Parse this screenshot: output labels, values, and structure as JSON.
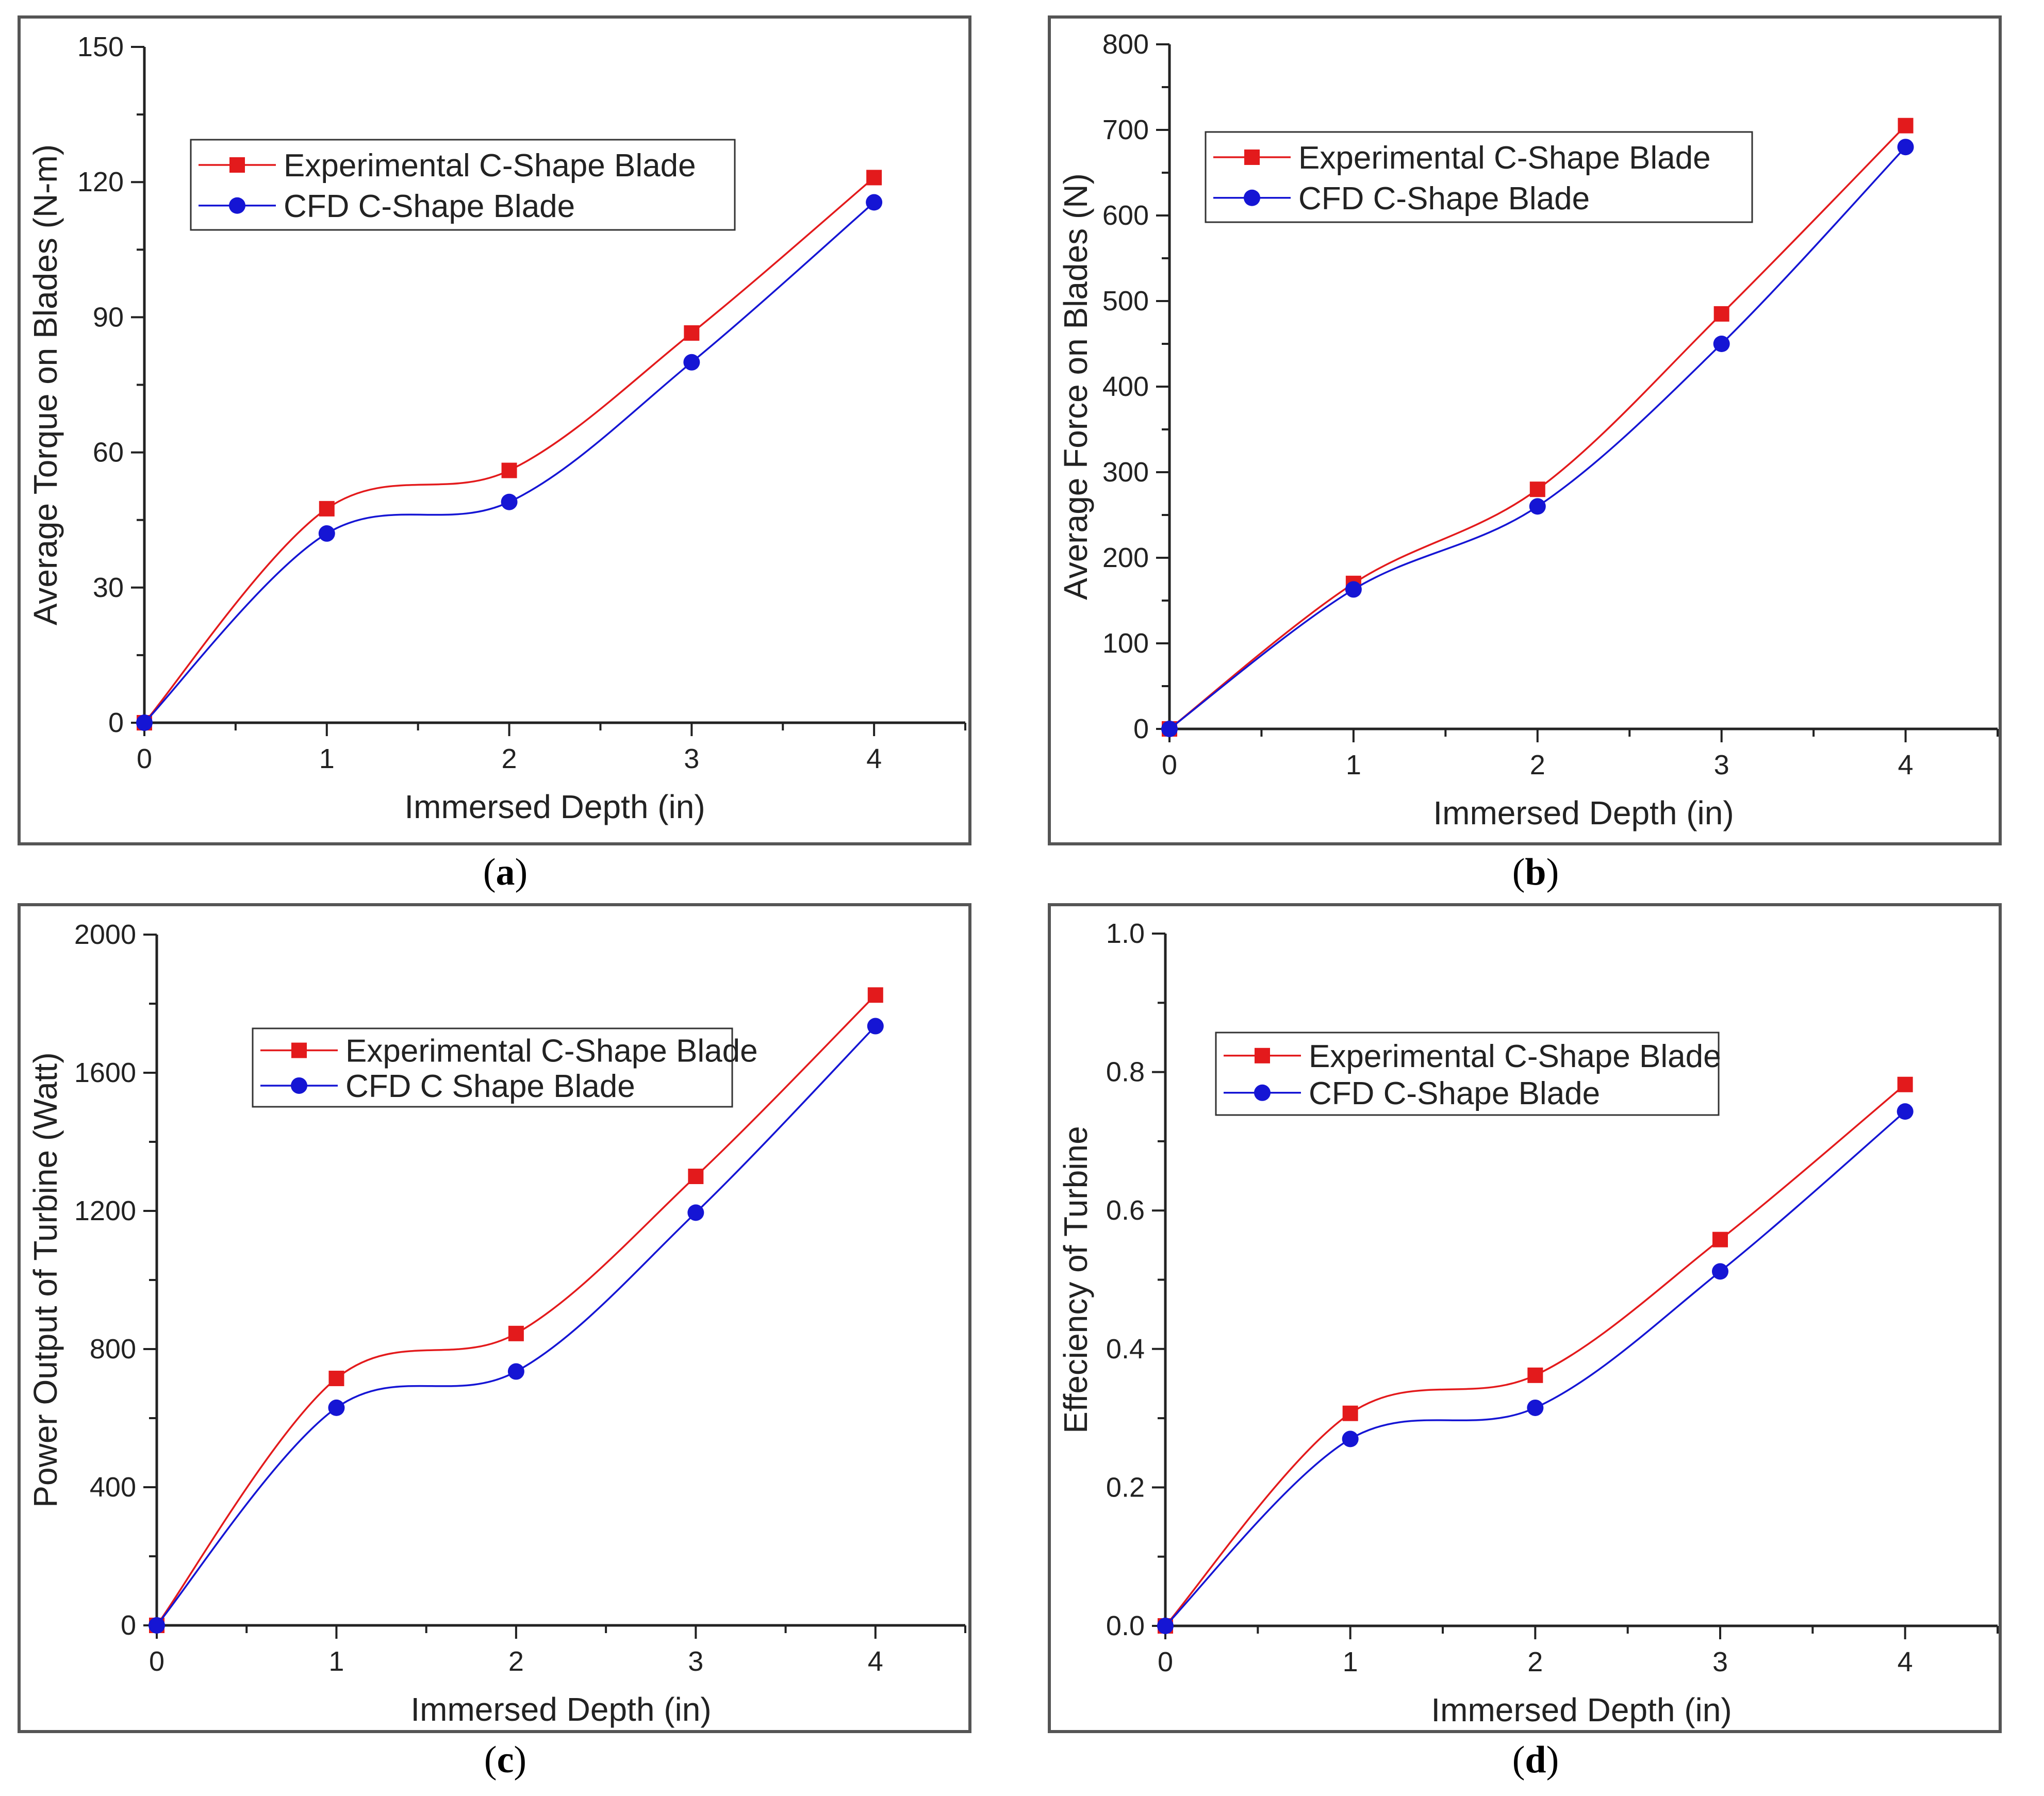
{
  "chart_data": [
    {
      "type": "line",
      "title": "",
      "panel_label": "a",
      "xlabel": "Immersed Depth (in)",
      "ylabel": "Average Torque on Blades (N-m)",
      "xlim": [
        0,
        4.5
      ],
      "ylim": [
        0,
        150
      ],
      "xticks": [
        "0",
        "1",
        "2",
        "3",
        "4"
      ],
      "yticks": [
        "0",
        "30",
        "60",
        "90",
        "120",
        "150"
      ],
      "x": [
        0,
        1,
        2,
        3,
        4
      ],
      "series": [
        {
          "name": "Experimental C-Shape Blade",
          "values": [
            0,
            47.5,
            56,
            86.5,
            121
          ],
          "color": "#e31a1c",
          "marker": "square"
        },
        {
          "name": "CFD C-Shape Blade",
          "values": [
            0,
            42,
            49,
            80,
            115.5
          ],
          "color": "#1515d4",
          "marker": "circle"
        }
      ],
      "legend": "top-left"
    },
    {
      "type": "line",
      "title": "",
      "panel_label": "b",
      "xlabel": "Immersed Depth (in)",
      "ylabel": "Average Force on Blades (N)",
      "xlim": [
        0,
        4.5
      ],
      "ylim": [
        0,
        800
      ],
      "xticks": [
        "0",
        "1",
        "2",
        "3",
        "4"
      ],
      "yticks": [
        "0",
        "100",
        "200",
        "300",
        "400",
        "500",
        "600",
        "700",
        "800"
      ],
      "x": [
        0,
        1,
        2,
        3,
        4
      ],
      "series": [
        {
          "name": "Experimental C-Shape Blade",
          "values": [
            0,
            170,
            280,
            485,
            705
          ],
          "color": "#e31a1c",
          "marker": "square"
        },
        {
          "name": "CFD C-Shape Blade",
          "values": [
            0,
            163,
            260,
            450,
            680
          ],
          "color": "#1515d4",
          "marker": "circle"
        }
      ],
      "legend": "top-left"
    },
    {
      "type": "line",
      "title": "",
      "panel_label": "c",
      "xlabel": "Immersed Depth (in)",
      "ylabel": "Power Output of Turbine (Watt)",
      "xlim": [
        0,
        4.5
      ],
      "ylim": [
        0,
        2000
      ],
      "xticks": [
        "0",
        "1",
        "2",
        "3",
        "4"
      ],
      "yticks": [
        "0",
        "400",
        "800",
        "1200",
        "1600",
        "2000"
      ],
      "x": [
        0,
        1,
        2,
        3,
        4
      ],
      "series": [
        {
          "name": "Experimental C-Shape Blade",
          "values": [
            0,
            715,
            845,
            1300,
            1825
          ],
          "color": "#e31a1c",
          "marker": "square"
        },
        {
          "name": "CFD C Shape Blade",
          "values": [
            0,
            630,
            735,
            1195,
            1735
          ],
          "color": "#1515d4",
          "marker": "circle"
        }
      ],
      "legend": "top-left"
    },
    {
      "type": "line",
      "title": "",
      "panel_label": "d",
      "xlabel": "Immersed Depth (in)",
      "ylabel": "Effeciency of Turbine",
      "xlim": [
        0,
        4.5
      ],
      "ylim": [
        0,
        1.0
      ],
      "xticks": [
        "0",
        "1",
        "2",
        "3",
        "4"
      ],
      "yticks": [
        "0.0",
        "0.2",
        "0.4",
        "0.6",
        "0.8",
        "1.0"
      ],
      "x": [
        0,
        1,
        2,
        3,
        4
      ],
      "series": [
        {
          "name": "Experimental C-Shape Blade",
          "values": [
            0,
            0.307,
            0.362,
            0.558,
            0.782
          ],
          "color": "#e31a1c",
          "marker": "square"
        },
        {
          "name": "CFD C-Shape Blade",
          "values": [
            0,
            0.27,
            0.315,
            0.512,
            0.743
          ],
          "color": "#1515d4",
          "marker": "circle"
        }
      ],
      "legend": "top-left"
    }
  ],
  "captions": [
    "a",
    "b",
    "c",
    "d"
  ]
}
